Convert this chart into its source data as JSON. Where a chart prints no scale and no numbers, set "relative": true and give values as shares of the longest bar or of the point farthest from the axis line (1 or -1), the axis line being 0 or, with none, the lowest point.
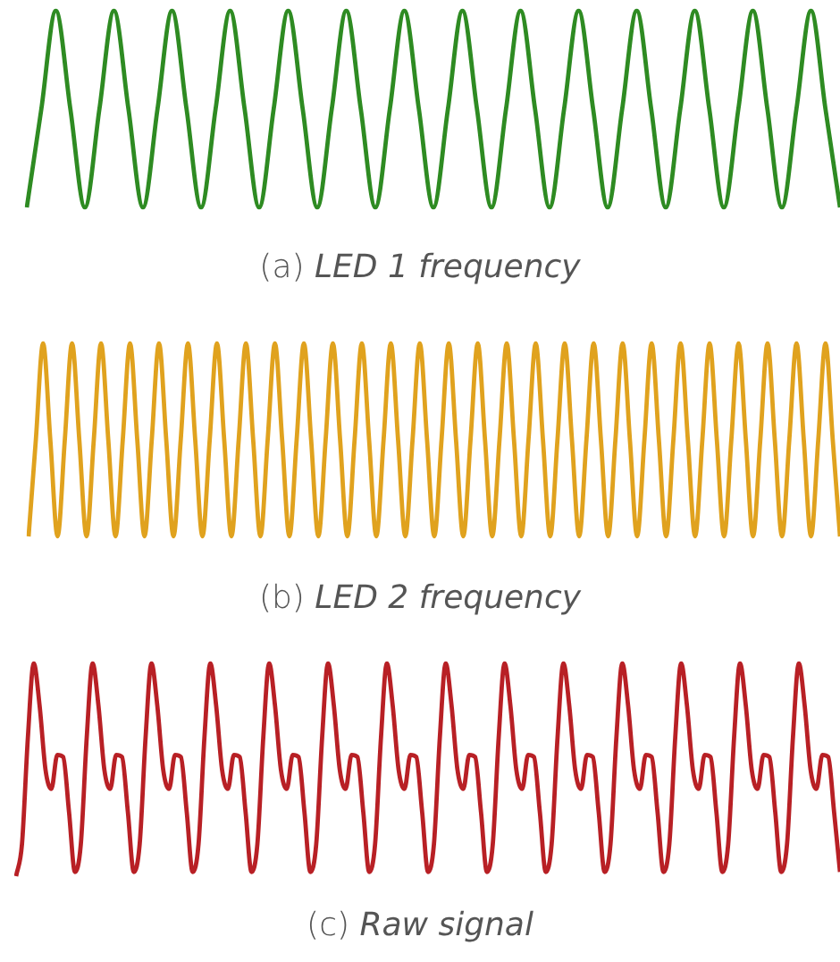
{
  "chart_data": [
    {
      "type": "line",
      "title": "(a) LED 1 frequency",
      "relative": true,
      "marker": "none",
      "categories": [
        null,
        null,
        null,
        null,
        null,
        null,
        null,
        null,
        null,
        null,
        null,
        null,
        null,
        null,
        null,
        null,
        null,
        null,
        null,
        null,
        null,
        null,
        null,
        null,
        null,
        null,
        null,
        null,
        null,
        null,
        null,
        null,
        null,
        null,
        null,
        null,
        null,
        null,
        null,
        null,
        null,
        null,
        null,
        null,
        null,
        null,
        null,
        null,
        null,
        null,
        null,
        null,
        null,
        null,
        null,
        null,
        null
      ],
      "series": [
        {
          "color": "#2e8b22",
          "values": [
            0,
            0.5,
            1,
            0.5,
            0,
            0.5,
            1,
            0.5,
            0,
            0.5,
            1,
            0.5,
            0,
            0.5,
            1,
            0.5,
            0,
            0.5,
            1,
            0.5,
            0,
            0.5,
            1,
            0.5,
            0,
            0.5,
            1,
            0.5,
            0,
            0.5,
            1,
            0.5,
            0,
            0.5,
            1,
            0.5,
            0,
            0.5,
            1,
            0.5,
            0,
            0.5,
            1,
            0.5,
            0,
            0.5,
            1,
            0.5,
            0,
            0.5,
            1,
            0.5,
            0,
            0.5,
            1,
            0.5,
            0
          ]
        }
      ]
    },
    {
      "type": "line",
      "title": "(b) LED 2 frequency",
      "relative": true,
      "marker": "none",
      "categories": [
        null,
        null,
        null,
        null,
        null,
        null,
        null,
        null,
        null,
        null,
        null,
        null,
        null,
        null,
        null,
        null,
        null,
        null,
        null,
        null,
        null,
        null,
        null,
        null,
        null,
        null,
        null,
        null,
        null,
        null,
        null,
        null,
        null,
        null,
        null,
        null,
        null,
        null,
        null,
        null,
        null,
        null,
        null,
        null,
        null,
        null,
        null,
        null,
        null,
        null,
        null,
        null,
        null,
        null,
        null,
        null,
        null,
        null,
        null,
        null,
        null,
        null,
        null,
        null,
        null,
        null,
        null,
        null,
        null,
        null,
        null,
        null,
        null,
        null,
        null,
        null,
        null,
        null,
        null,
        null,
        null,
        null,
        null,
        null,
        null,
        null,
        null,
        null,
        null,
        null,
        null,
        null,
        null,
        null,
        null,
        null,
        null,
        null,
        null,
        null,
        null,
        null,
        null,
        null,
        null,
        null,
        null,
        null,
        null,
        null,
        null,
        null,
        null
      ],
      "series": [
        {
          "color": "#e0a21e",
          "values": [
            0,
            0.5,
            1,
            0.5,
            0,
            0.5,
            1,
            0.5,
            0,
            0.5,
            1,
            0.5,
            0,
            0.5,
            1,
            0.5,
            0,
            0.5,
            1,
            0.5,
            0,
            0.5,
            1,
            0.5,
            0,
            0.5,
            1,
            0.5,
            0,
            0.5,
            1,
            0.5,
            0,
            0.5,
            1,
            0.5,
            0,
            0.5,
            1,
            0.5,
            0,
            0.5,
            1,
            0.5,
            0,
            0.5,
            1,
            0.5,
            0,
            0.5,
            1,
            0.5,
            0,
            0.5,
            1,
            0.5,
            0,
            0.5,
            1,
            0.5,
            0,
            0.5,
            1,
            0.5,
            0,
            0.5,
            1,
            0.5,
            0,
            0.5,
            1,
            0.5,
            0,
            0.5,
            1,
            0.5,
            0,
            0.5,
            1,
            0.5,
            0,
            0.5,
            1,
            0.5,
            0,
            0.5,
            1,
            0.5,
            0,
            0.5,
            1,
            0.5,
            0,
            0.5,
            1,
            0.5,
            0,
            0.5,
            1,
            0.5,
            0,
            0.5,
            1,
            0.5,
            0,
            0.5,
            1,
            0.5,
            0,
            0.5,
            1,
            0.5,
            0
          ]
        }
      ]
    },
    {
      "type": "line",
      "title": "(c) Raw signal",
      "relative": true,
      "marker": "none",
      "categories": [
        null,
        null,
        null,
        null,
        null,
        null,
        null,
        null,
        null,
        null,
        null,
        null,
        null,
        null,
        null,
        null,
        null,
        null,
        null,
        null,
        null,
        null,
        null,
        null,
        null,
        null,
        null,
        null,
        null,
        null,
        null,
        null,
        null,
        null,
        null,
        null,
        null,
        null,
        null,
        null,
        null,
        null,
        null,
        null,
        null,
        null,
        null,
        null,
        null,
        null,
        null,
        null,
        null,
        null,
        null,
        null,
        null,
        null,
        null,
        null,
        null,
        null,
        null,
        null,
        null,
        null,
        null,
        null,
        null,
        null,
        null,
        null,
        null,
        null,
        null,
        null,
        null,
        null,
        null,
        null,
        null,
        null,
        null,
        null,
        null,
        null,
        null,
        null,
        null,
        null,
        null,
        null,
        null,
        null,
        null,
        null,
        null,
        null,
        null,
        null,
        null,
        null,
        null,
        null,
        null,
        null,
        null,
        null,
        null,
        null,
        null,
        null,
        null,
        null,
        null,
        null,
        null,
        null,
        null,
        null,
        null,
        null,
        null,
        null,
        null,
        null,
        null,
        null,
        null,
        null,
        null,
        null,
        null,
        null,
        null,
        null,
        null,
        null,
        null,
        null,
        null
      ],
      "series": [
        {
          "color": "#b82025",
          "values": [
            0,
            0.15,
            0.65,
            1,
            0.8,
            0.5,
            0.41,
            0.57,
            0.56,
            0.3,
            0.02,
            0.15,
            0.65,
            1,
            0.8,
            0.5,
            0.41,
            0.57,
            0.56,
            0.3,
            0.02,
            0.15,
            0.65,
            1,
            0.8,
            0.5,
            0.41,
            0.57,
            0.56,
            0.3,
            0.02,
            0.15,
            0.65,
            1,
            0.8,
            0.5,
            0.41,
            0.57,
            0.56,
            0.3,
            0.02,
            0.15,
            0.65,
            1,
            0.8,
            0.5,
            0.41,
            0.57,
            0.56,
            0.3,
            0.02,
            0.15,
            0.65,
            1,
            0.8,
            0.5,
            0.41,
            0.57,
            0.56,
            0.3,
            0.02,
            0.15,
            0.65,
            1,
            0.8,
            0.5,
            0.41,
            0.57,
            0.56,
            0.3,
            0.02,
            0.15,
            0.65,
            1,
            0.8,
            0.5,
            0.41,
            0.57,
            0.56,
            0.3,
            0.02,
            0.15,
            0.65,
            1,
            0.8,
            0.5,
            0.41,
            0.57,
            0.56,
            0.3,
            0.02,
            0.15,
            0.65,
            1,
            0.8,
            0.5,
            0.41,
            0.57,
            0.56,
            0.3,
            0.02,
            0.15,
            0.65,
            1,
            0.8,
            0.5,
            0.41,
            0.57,
            0.56,
            0.3,
            0.02,
            0.15,
            0.65,
            1,
            0.8,
            0.5,
            0.41,
            0.57,
            0.56,
            0.3,
            0.02,
            0.15,
            0.65,
            1,
            0.8,
            0.5,
            0.41,
            0.57,
            0.56,
            0.3,
            0.02,
            0.15,
            0.65,
            1,
            0.8,
            0.5,
            0.41,
            0.57,
            0.56,
            0.3,
            0.02
          ]
        }
      ]
    }
  ]
}
